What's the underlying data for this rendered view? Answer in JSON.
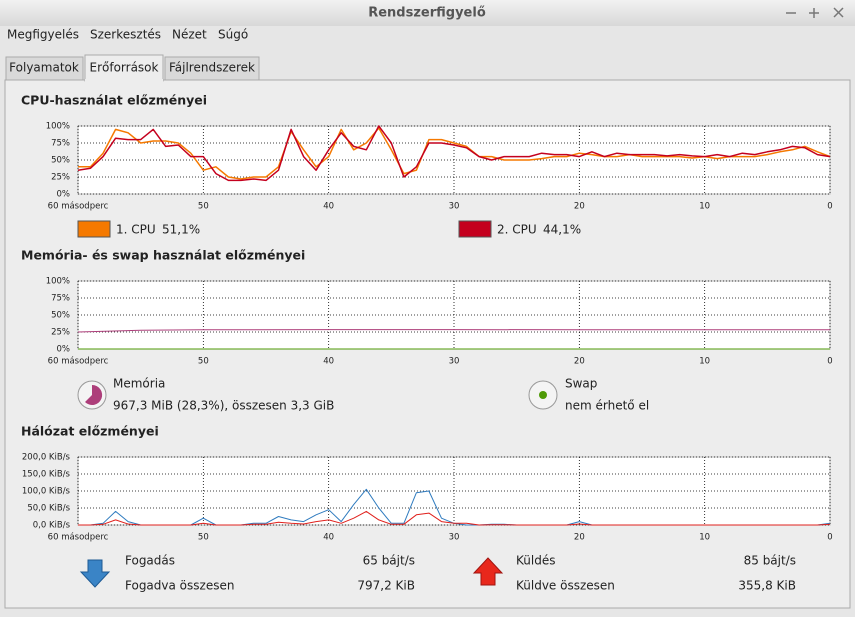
{
  "window_title": "Rendszerfigyelő",
  "menu": [
    "Megfigyelés",
    "Szerkesztés",
    "Nézet",
    "Súgó"
  ],
  "tabs": [
    "Folyamatok",
    "Erőforrások",
    "Fájlrendszerek"
  ],
  "chart_data": [
    {
      "type": "line",
      "title": "CPU-használat előzményei",
      "x": [
        60,
        59,
        58,
        57,
        56,
        55,
        54,
        53,
        52,
        51,
        50,
        49,
        48,
        47,
        46,
        45,
        44,
        43,
        42,
        41,
        40,
        39,
        38,
        37,
        36,
        35,
        34,
        33,
        32,
        31,
        30,
        29,
        28,
        27,
        26,
        25,
        24,
        23,
        22,
        21,
        20,
        19,
        18,
        17,
        16,
        15,
        14,
        13,
        12,
        11,
        10,
        9,
        8,
        7,
        6,
        5,
        4,
        3,
        2,
        1,
        0
      ],
      "xlim": [
        60,
        0
      ],
      "xticks": [
        {
          "value": 60,
          "label": "60 másodperc"
        },
        50,
        40,
        30,
        20,
        10,
        0
      ],
      "ylim": [
        0,
        100
      ],
      "yticks": [
        {
          "value": 0,
          "label": "0%"
        },
        {
          "value": 25,
          "label": "25%"
        },
        {
          "value": 50,
          "label": "50%"
        },
        {
          "value": 75,
          "label": "75%"
        },
        {
          "value": 100,
          "label": "100%"
        }
      ],
      "grid": true,
      "series": [
        {
          "name": "1. CPU",
          "current": "51,1%",
          "color": "#f57900",
          "values": [
            40,
            40,
            60,
            95,
            90,
            75,
            78,
            78,
            75,
            60,
            35,
            40,
            25,
            22,
            25,
            25,
            40,
            92,
            65,
            40,
            55,
            95,
            65,
            75,
            97,
            65,
            30,
            35,
            80,
            80,
            75,
            70,
            55,
            55,
            50,
            50,
            50,
            52,
            55,
            55,
            60,
            58,
            55,
            55,
            58,
            55,
            55,
            55,
            55,
            53,
            55,
            52,
            55,
            55,
            55,
            58,
            62,
            65,
            70,
            62,
            55
          ]
        },
        {
          "name": "2. CPU",
          "current": "44,1%",
          "color": "#c4001e",
          "values": [
            35,
            38,
            55,
            82,
            80,
            80,
            95,
            70,
            72,
            55,
            55,
            30,
            20,
            20,
            22,
            20,
            35,
            95,
            55,
            35,
            65,
            90,
            70,
            65,
            100,
            75,
            25,
            40,
            75,
            75,
            72,
            68,
            55,
            50,
            55,
            55,
            55,
            60,
            58,
            58,
            55,
            62,
            55,
            60,
            58,
            58,
            58,
            56,
            58,
            56,
            55,
            58,
            55,
            60,
            58,
            62,
            65,
            70,
            68,
            58,
            55
          ]
        }
      ]
    },
    {
      "type": "line",
      "title": "Memória- és swap használat előzményei",
      "x": [
        60,
        55,
        50,
        40,
        30,
        20,
        10,
        0
      ],
      "xlim": [
        60,
        0
      ],
      "xticks": [
        {
          "value": 60,
          "label": "60 másodperc"
        },
        50,
        40,
        30,
        20,
        10,
        0
      ],
      "ylim": [
        0,
        100
      ],
      "yticks": [
        {
          "value": 0,
          "label": "0%"
        },
        {
          "value": 25,
          "label": "25%"
        },
        {
          "value": 50,
          "label": "50%"
        },
        {
          "value": 75,
          "label": "75%"
        },
        {
          "value": 100,
          "label": "100%"
        }
      ],
      "grid": true,
      "series": [
        {
          "name": "Memória",
          "detail": "967,3 MiB (28,3%), összesen 3,3 GiB",
          "color": "#ad3e7a",
          "values": [
            25,
            27.5,
            28.3,
            28.5,
            28.5,
            28.3,
            28.3,
            28.3
          ]
        },
        {
          "name": "Swap",
          "detail": "nem érhető el",
          "color": "#4e9a06",
          "values": [
            0,
            0,
            0,
            0,
            0,
            0,
            0,
            0
          ]
        }
      ]
    },
    {
      "type": "line",
      "title": "Hálózat előzményei",
      "x": [
        60,
        59,
        58,
        57,
        56,
        55,
        54,
        53,
        52,
        51,
        50,
        49,
        48,
        47,
        46,
        45,
        44,
        43,
        42,
        41,
        40,
        39,
        38,
        37,
        36,
        35,
        34,
        33,
        32,
        31,
        30,
        29,
        28,
        27,
        26,
        25,
        24,
        23,
        22,
        21,
        20,
        19,
        18,
        17,
        16,
        15,
        14,
        13,
        12,
        11,
        10,
        9,
        8,
        7,
        6,
        5,
        4,
        3,
        2,
        1,
        0
      ],
      "xlim": [
        60,
        0
      ],
      "xticks": [
        {
          "value": 60,
          "label": "60 másodperc"
        },
        50,
        40,
        30,
        20,
        10,
        0
      ],
      "ylim": [
        0,
        200
      ],
      "yticks": [
        {
          "value": 0,
          "label": "0,0 KiB/s"
        },
        {
          "value": 50,
          "label": "50,0 KiB/s"
        },
        {
          "value": 100,
          "label": "100,0 KiB/s"
        },
        {
          "value": 150,
          "label": "150,0 KiB/s"
        },
        {
          "value": 200,
          "label": "200,0 KiB/s"
        }
      ],
      "grid": true,
      "series": [
        {
          "name": "Fogadás",
          "rate": "65 bájt/s",
          "total_name": "Fogadva összesen",
          "total": "797,2 KiB",
          "color": "#2f7bbf",
          "values": [
            0,
            0,
            5,
            40,
            10,
            0,
            0,
            0,
            0,
            0,
            20,
            0,
            0,
            0,
            5,
            5,
            25,
            15,
            10,
            30,
            45,
            10,
            60,
            105,
            50,
            5,
            5,
            95,
            100,
            20,
            5,
            0,
            0,
            2,
            2,
            0,
            0,
            0,
            0,
            0,
            10,
            0,
            0,
            0,
            0,
            0,
            0,
            0,
            0,
            0,
            0,
            0,
            0,
            0,
            0,
            0,
            0,
            0,
            0,
            0,
            5
          ]
        },
        {
          "name": "Küldés",
          "rate": "85 bájt/s",
          "total_name": "Küldve összesen",
          "total": "355,8 KiB",
          "color": "#e0201c",
          "values": [
            0,
            0,
            2,
            15,
            3,
            0,
            0,
            0,
            0,
            0,
            5,
            0,
            0,
            0,
            2,
            2,
            8,
            5,
            3,
            10,
            15,
            5,
            20,
            40,
            15,
            2,
            2,
            30,
            35,
            10,
            5,
            5,
            0,
            1,
            1,
            0,
            0,
            0,
            0,
            0,
            3,
            0,
            0,
            0,
            0,
            0,
            0,
            0,
            0,
            0,
            0,
            0,
            0,
            0,
            0,
            0,
            0,
            0,
            0,
            0,
            2
          ]
        }
      ]
    }
  ]
}
